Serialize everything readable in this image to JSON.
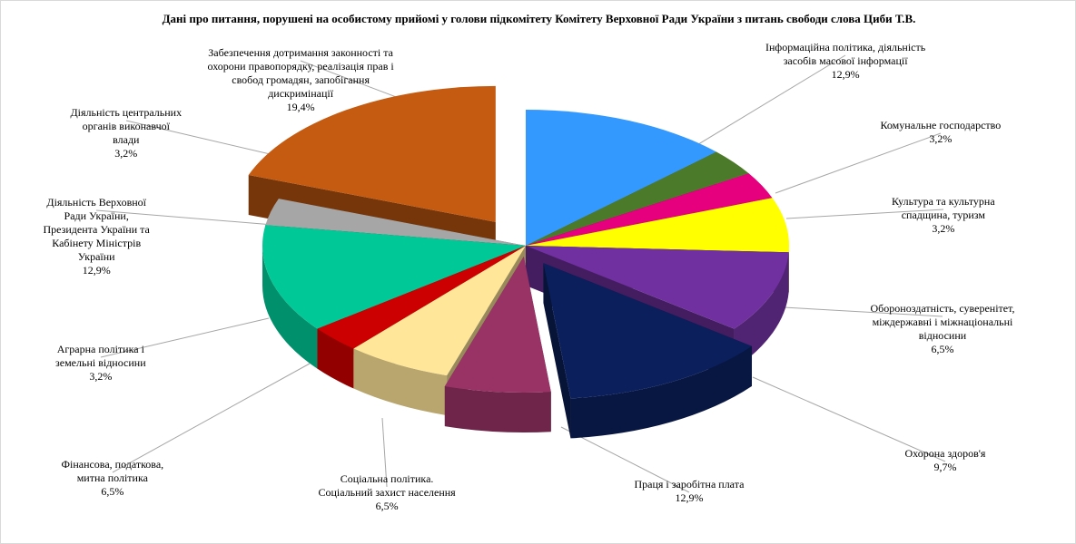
{
  "chart_data": {
    "type": "pie",
    "title": "Дані про питання, порушені на особистому прийомі у голови підкомітету Комітету Верховної Ради України з питань свободи слова Циби Т.В.",
    "slices": [
      {
        "label": [
          "Інформаційна  політика,  діяльність",
          "засобів масової інформації"
        ],
        "value_text": "12,9%",
        "value": 12.9,
        "color": "#3399ff"
      },
      {
        "label": [
          "Комунальне  господарство"
        ],
        "value_text": "3,2%",
        "value": 3.2,
        "color": "#4c7a2b"
      },
      {
        "label": [
          "Культура  та культурна",
          "спадщина,  туризм"
        ],
        "value_text": "3,2%",
        "value": 3.2,
        "color": "#e6007e"
      },
      {
        "label": [
          "Обороноздатність,  суверенітет,",
          "міждержавні  і  міжнаціональні",
          "відносини"
        ],
        "value_text": "6,5%",
        "value": 6.5,
        "color": "#ffff00"
      },
      {
        "label": [
          "Охорона  здоров'я"
        ],
        "value_text": "9,7%",
        "value": 9.7,
        "color": "#7030a0"
      },
      {
        "label": [
          "Праця  і  заробітна плата"
        ],
        "value_text": "12,9%",
        "value": 12.9,
        "color": "#0b1f5c"
      },
      {
        "label": [
          "Соціальна  політика.",
          "Соціальний  захист  населення"
        ],
        "value_text": "6,5%",
        "value": 6.5,
        "color": "#993366"
      },
      {
        "label": [
          "Фінансова,  податкова,",
          "митна  політика"
        ],
        "value_text": "6,5%",
        "value": 6.5,
        "color": "#ffe699"
      },
      {
        "label": [
          "Аграрна  політика  і",
          "земельні  відносини"
        ],
        "value_text": "3,2%",
        "value": 3.2,
        "color": "#cc0000"
      },
      {
        "label": [
          "Діяльність  Верховної",
          "Ради  України,",
          "Президента  України  та",
          "Кабінету  Міністрів",
          "України"
        ],
        "value_text": "12,9%",
        "value": 12.9,
        "color": "#00c896"
      },
      {
        "label": [
          "Діяльність  центральних",
          "органів  виконавчої",
          "влади"
        ],
        "value_text": "3,2%",
        "value": 3.2,
        "color": "#a6a6a6"
      },
      {
        "label": [
          "Забезпечення  дотримання  законності  та",
          "охорони  правопорядку,  реалізація  прав  і",
          "свобод громадян,  запобігання",
          "дискримінації"
        ],
        "value_text": "19,4%",
        "value": 19.4,
        "color": "#c55a11"
      }
    ]
  }
}
